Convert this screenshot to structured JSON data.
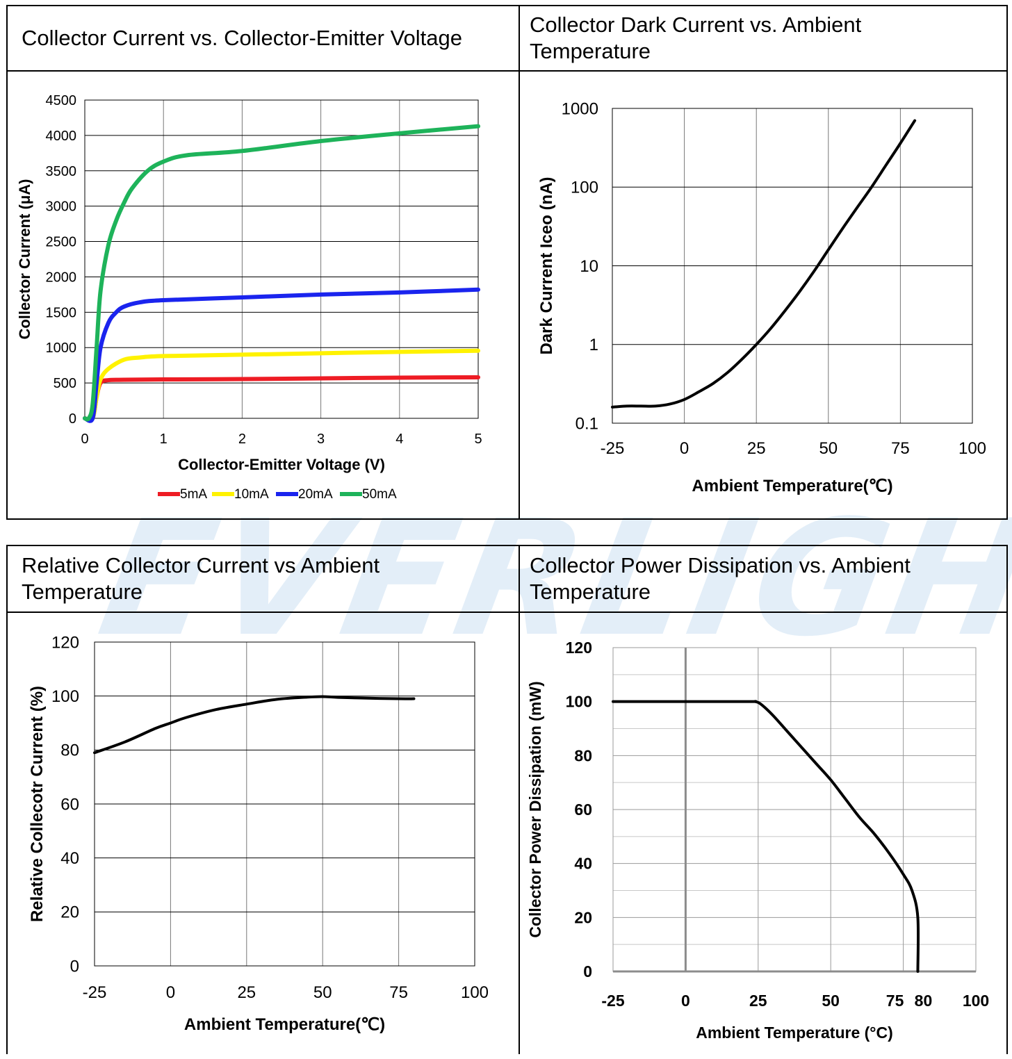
{
  "watermark": "EVERLIGHT",
  "panels": {
    "p1": {
      "title": "Collector Current vs. Collector-Emitter Voltage"
    },
    "p2": {
      "title": "Collector Dark Current vs. Ambient Temperature"
    },
    "p3": {
      "title": "Relative Collector Current vs Ambient Temperature"
    },
    "p4": {
      "title": "Collector Power Dissipation vs. Ambient Temperature"
    }
  },
  "chart_data": [
    {
      "type": "line",
      "xlabel": "Collector-Emitter Voltage (V)",
      "ylabel": "Collector Current (μA)",
      "xlim": [
        0,
        5
      ],
      "ylim": [
        0,
        4500
      ],
      "xticks": [
        "0",
        "1",
        "2",
        "3",
        "4",
        "5"
      ],
      "yticks": [
        "0",
        "500",
        "1000",
        "1500",
        "2000",
        "2500",
        "3000",
        "3500",
        "4000",
        "4500"
      ],
      "grid": true,
      "legend_position": "bottom",
      "series": [
        {
          "name": "5mA",
          "color": "#ee1c24",
          "x": [
            0,
            0.1,
            0.15,
            0.2,
            0.3,
            0.5,
            1,
            2,
            3,
            4,
            5
          ],
          "y": [
            0,
            0,
            300,
            500,
            540,
            545,
            550,
            555,
            565,
            575,
            580
          ]
        },
        {
          "name": "10mA",
          "color": "#fff200",
          "x": [
            0,
            0.1,
            0.15,
            0.2,
            0.3,
            0.5,
            0.7,
            1,
            2,
            3,
            4,
            5
          ],
          "y": [
            0,
            0,
            300,
            550,
            700,
            830,
            860,
            880,
            900,
            920,
            940,
            955
          ]
        },
        {
          "name": "20mA",
          "color": "#1a24ee",
          "x": [
            0,
            0.1,
            0.15,
            0.2,
            0.3,
            0.4,
            0.5,
            0.7,
            1,
            2,
            3,
            4,
            5
          ],
          "y": [
            0,
            0,
            500,
            1000,
            1350,
            1500,
            1580,
            1640,
            1670,
            1710,
            1750,
            1780,
            1820
          ]
        },
        {
          "name": "50mA",
          "color": "#1eb35a",
          "x": [
            0,
            0.05,
            0.1,
            0.15,
            0.2,
            0.3,
            0.4,
            0.5,
            0.6,
            0.8,
            1,
            1.3,
            2,
            3,
            4,
            5
          ],
          "y": [
            0,
            0,
            200,
            1000,
            1800,
            2450,
            2800,
            3050,
            3250,
            3500,
            3630,
            3720,
            3780,
            3920,
            4030,
            4130
          ]
        }
      ]
    },
    {
      "type": "line",
      "xlabel": "Ambient Temperature(℃)",
      "ylabel": "Dark Current Iceo (nA)",
      "xlim": [
        -25,
        100
      ],
      "ylim": [
        0.1,
        1000
      ],
      "yscale": "log",
      "xticks": [
        "-25",
        "0",
        "25",
        "50",
        "75",
        "100"
      ],
      "yticks": [
        "0.1",
        "1",
        "10",
        "100",
        "1000"
      ],
      "grid": true,
      "series": [
        {
          "color": "#000000",
          "x": [
            -25,
            -20,
            -15,
            -10,
            -5,
            0,
            5,
            10,
            15,
            20,
            25,
            30,
            35,
            40,
            45,
            50,
            55,
            60,
            65,
            70,
            75,
            80
          ],
          "y": [
            0.16,
            0.165,
            0.165,
            0.165,
            0.175,
            0.2,
            0.25,
            0.32,
            0.44,
            0.65,
            1.0,
            1.6,
            2.7,
            4.7,
            8.5,
            16,
            30,
            55,
            100,
            190,
            360,
            700
          ]
        }
      ]
    },
    {
      "type": "line",
      "xlabel": "Ambient Temperature(℃)",
      "ylabel": "Relative Collecotr Current (%)",
      "xlim": [
        -25,
        100
      ],
      "ylim": [
        0,
        120
      ],
      "xticks": [
        "-25",
        "0",
        "25",
        "50",
        "75",
        "100"
      ],
      "yticks": [
        "0",
        "20",
        "40",
        "60",
        "80",
        "100",
        "120"
      ],
      "grid": true,
      "series": [
        {
          "color": "#000000",
          "x": [
            -25,
            -15,
            -5,
            0,
            5,
            15,
            25,
            35,
            45,
            50,
            55,
            65,
            75,
            80
          ],
          "y": [
            79,
            83,
            88,
            90,
            92,
            95,
            97,
            98.8,
            99.6,
            99.8,
            99.5,
            99.2,
            99,
            99
          ]
        }
      ]
    },
    {
      "type": "line",
      "xlabel": "Ambient Temperature (°C)",
      "ylabel": "Collector Power Dissipation (mW)",
      "xlim": [
        -25,
        100
      ],
      "ylim": [
        0,
        120
      ],
      "xticks": [
        "-25",
        "0",
        "25",
        "50",
        "75",
        "80",
        "100"
      ],
      "yticks": [
        "0",
        "20",
        "40",
        "60",
        "80",
        "100",
        "120"
      ],
      "grid": true,
      "series": [
        {
          "color": "#000000",
          "x": [
            -25,
            0,
            22,
            24,
            26,
            30,
            35,
            40,
            45,
            50,
            55,
            60,
            65,
            70,
            75,
            78,
            80,
            80
          ],
          "y": [
            100,
            100,
            100,
            100,
            99,
            95,
            89,
            83,
            77,
            71,
            64,
            57,
            51,
            44,
            36,
            30,
            20,
            0
          ]
        }
      ]
    }
  ]
}
